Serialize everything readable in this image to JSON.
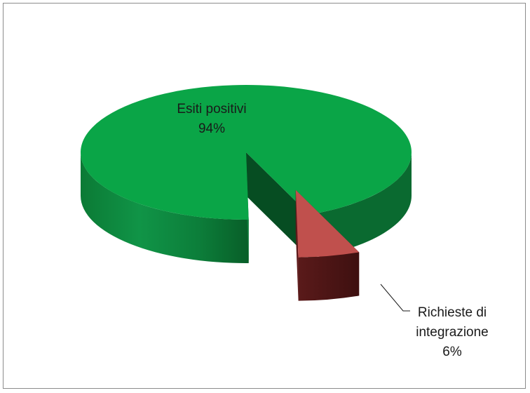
{
  "chart_data": {
    "type": "pie",
    "title": "",
    "categories": [
      "Esiti positivi",
      "Richieste di integrazione"
    ],
    "values": [
      94,
      6
    ],
    "percent_labels": [
      "94%",
      "6%"
    ],
    "label_lines": [
      [
        "Esiti positivi",
        "94%"
      ],
      [
        "Richieste di",
        "integrazione",
        "6%"
      ]
    ],
    "colors": [
      "#0aa547",
      "#c0504d"
    ],
    "style": "3d-exploded",
    "legend": "none"
  }
}
